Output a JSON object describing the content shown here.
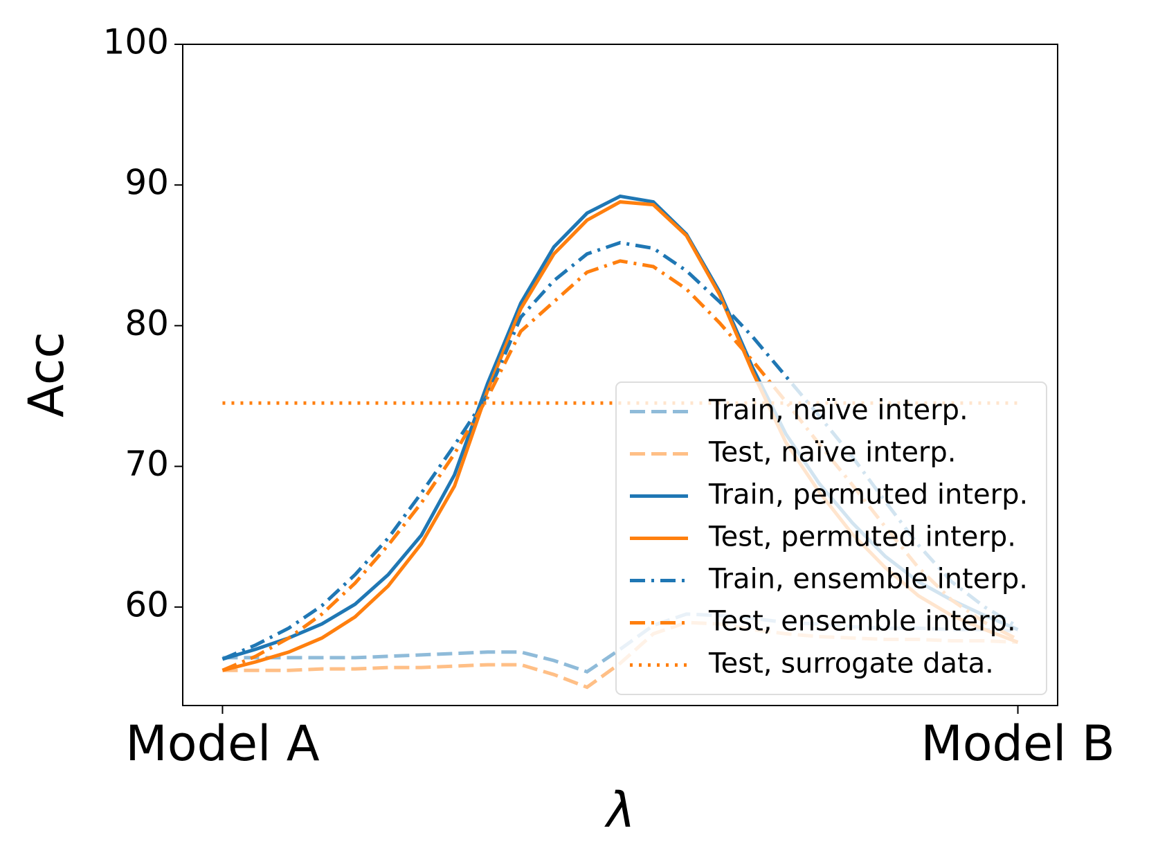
{
  "chart_data": {
    "type": "line",
    "x_label": "λ",
    "y_label": "Acc",
    "x": [
      0,
      0.041667,
      0.083333,
      0.125,
      0.166667,
      0.208333,
      0.25,
      0.291667,
      0.333333,
      0.375,
      0.416667,
      0.458333,
      0.5,
      0.541667,
      0.583333,
      0.625,
      0.666667,
      0.708333,
      0.75,
      0.791667,
      0.833333,
      0.875,
      0.916667,
      0.958333,
      1
    ],
    "xlim": [
      -0.05,
      1.05
    ],
    "xticks": [
      {
        "value": 0,
        "label": "Model A"
      },
      {
        "value": 1,
        "label": "Model B"
      }
    ],
    "ylim": [
      53,
      100
    ],
    "yticks": [
      60,
      70,
      80,
      90,
      100
    ],
    "legend": "lower right",
    "series": [
      {
        "name": "Train, naïve interp.",
        "color": "#8fbbd9",
        "style": "dashed",
        "values": [
          56.4,
          56.4,
          56.4,
          56.4,
          56.4,
          56.5,
          56.6,
          56.7,
          56.8,
          56.8,
          56.2,
          55.4,
          57.0,
          58.7,
          59.5,
          59.4,
          59.2,
          58.9,
          58.8,
          58.6,
          58.5,
          58.5,
          58.4,
          58.4,
          58.3
        ]
      },
      {
        "name": "Test, naïve interp.",
        "color": "#ffbf86",
        "style": "dashed",
        "values": [
          55.5,
          55.5,
          55.5,
          55.6,
          55.6,
          55.7,
          55.7,
          55.8,
          55.9,
          55.9,
          55.2,
          54.3,
          56.0,
          58.1,
          58.9,
          58.8,
          58.4,
          58.1,
          57.9,
          57.8,
          57.7,
          57.7,
          57.6,
          57.6,
          57.5
        ]
      },
      {
        "name": "Train, permuted interp.",
        "color": "#1f77b4",
        "style": "solid",
        "values": [
          56.3,
          57.0,
          57.8,
          58.8,
          60.2,
          62.3,
          65.1,
          69.4,
          75.9,
          81.6,
          85.6,
          88.0,
          89.2,
          88.8,
          86.5,
          82.4,
          77.0,
          72.3,
          68.8,
          66.0,
          63.6,
          61.8,
          60.5,
          59.4,
          58.4
        ]
      },
      {
        "name": "Test, permuted interp.",
        "color": "#ff7f0e",
        "style": "solid",
        "values": [
          55.5,
          56.1,
          56.8,
          57.8,
          59.3,
          61.5,
          64.5,
          68.6,
          75.4,
          81.2,
          85.1,
          87.5,
          88.8,
          88.6,
          86.4,
          82.2,
          76.7,
          71.7,
          68.2,
          65.2,
          62.8,
          60.8,
          59.4,
          58.4,
          57.5
        ]
      },
      {
        "name": "Train, ensemble interp.",
        "color": "#1f77b4",
        "style": "dashdot",
        "values": [
          56.3,
          57.3,
          58.5,
          60.1,
          62.3,
          64.9,
          68.1,
          71.5,
          75.1,
          80.6,
          83.2,
          85.1,
          85.9,
          85.5,
          83.9,
          81.7,
          79.2,
          76.4,
          73.6,
          70.7,
          67.5,
          64.4,
          61.8,
          60.0,
          58.6
        ]
      },
      {
        "name": "Test, ensemble interp.",
        "color": "#ff7f0e",
        "style": "dashdot",
        "values": [
          55.5,
          56.5,
          57.8,
          59.5,
          61.7,
          64.4,
          67.4,
          70.9,
          74.9,
          79.6,
          81.7,
          83.8,
          84.6,
          84.2,
          82.6,
          80.2,
          77.5,
          74.6,
          71.6,
          68.7,
          65.7,
          62.8,
          60.5,
          58.9,
          57.7
        ]
      },
      {
        "name": "Test, surrogate data.",
        "color": "#ff7f0e",
        "style": "dotted",
        "values": [
          74.5,
          74.5,
          74.5,
          74.5,
          74.5,
          74.5,
          74.5,
          74.5,
          74.5,
          74.5,
          74.5,
          74.5,
          74.5,
          74.5,
          74.5,
          74.5,
          74.5,
          74.5,
          74.5,
          74.5,
          74.5,
          74.5,
          74.5,
          74.5,
          74.5
        ]
      }
    ]
  }
}
